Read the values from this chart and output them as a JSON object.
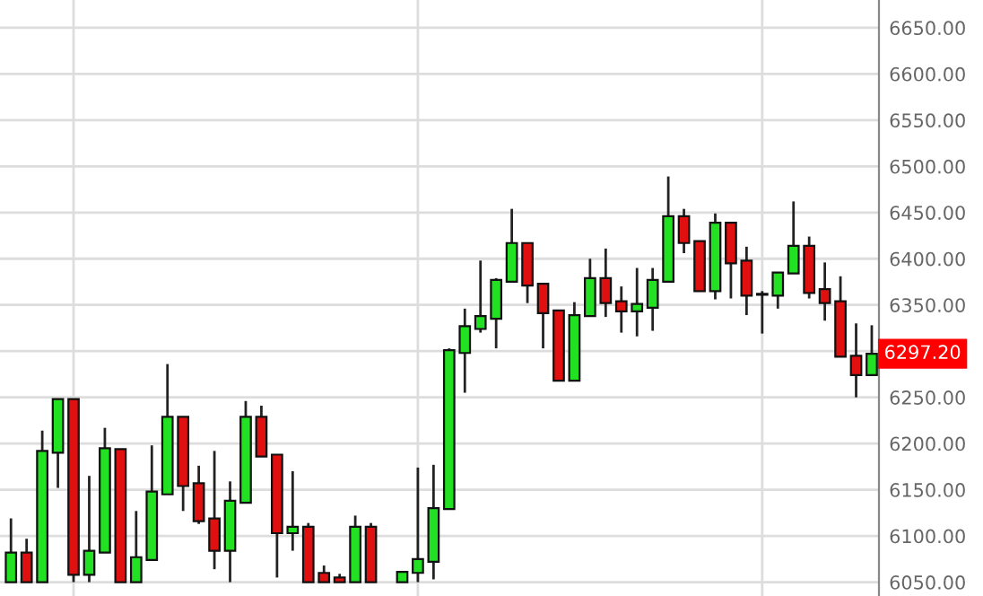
{
  "chart_data": {
    "type": "candlestick",
    "categories": [
      null,
      null,
      null,
      null,
      null,
      null,
      null,
      null,
      null,
      null,
      null,
      null,
      null,
      null,
      null,
      null,
      null,
      null,
      null,
      null,
      null,
      null,
      null,
      null,
      null,
      null,
      null,
      null,
      null,
      null,
      null,
      null,
      null,
      null,
      null,
      null,
      null,
      null,
      null,
      null,
      null,
      null,
      null,
      null,
      null,
      null,
      null,
      null,
      null,
      null,
      null,
      null,
      null,
      null,
      null,
      null
    ],
    "ohlc": [
      [
        6050,
        6119,
        6050,
        6082
      ],
      [
        6082,
        6097,
        6050,
        6050
      ],
      [
        6050,
        6214,
        6050,
        6192
      ],
      [
        6190,
        6248,
        6152,
        6248
      ],
      [
        6248,
        6248,
        6050,
        6058
      ],
      [
        6058,
        6165,
        6050,
        6084
      ],
      [
        6082,
        6217,
        6082,
        6195
      ],
      [
        6194,
        6194,
        6050,
        6050
      ],
      [
        6050,
        6127,
        6050,
        6077
      ],
      [
        6074,
        6198,
        6074,
        6148
      ],
      [
        6145,
        6286,
        6145,
        6229
      ],
      [
        6229,
        6229,
        6127,
        6154
      ],
      [
        6157,
        6176,
        6113,
        6116
      ],
      [
        6119,
        6192,
        6064,
        6084
      ],
      [
        6084,
        6159,
        6050,
        6138
      ],
      [
        6136,
        6246,
        6136,
        6229
      ],
      [
        6229,
        6241,
        6186,
        6186
      ],
      [
        6188,
        6188,
        6055,
        6103
      ],
      [
        6103,
        6170,
        6084,
        6110
      ],
      [
        6110,
        6114,
        6050,
        6050
      ],
      [
        6060,
        6068,
        6050,
        6050
      ],
      [
        6055,
        6059,
        6050,
        6050
      ],
      [
        6050,
        6122,
        6050,
        6110
      ],
      [
        6110,
        6114,
        6050,
        6050
      ],
      null,
      [
        6050,
        6061,
        6050,
        6061
      ],
      [
        6060,
        6174,
        6050,
        6075
      ],
      [
        6072,
        6177,
        6053,
        6130
      ],
      [
        6129,
        6303,
        6129,
        6301
      ],
      [
        6298,
        6346,
        6255,
        6327
      ],
      [
        6324,
        6398,
        6320,
        6338
      ],
      [
        6335,
        6379,
        6303,
        6377
      ],
      [
        6375,
        6454,
        6375,
        6417
      ],
      [
        6417,
        6417,
        6352,
        6371
      ],
      [
        6373,
        6373,
        6303,
        6341
      ],
      [
        6344,
        6344,
        6268,
        6268
      ],
      [
        6268,
        6353,
        6268,
        6339
      ],
      [
        6338,
        6400,
        6338,
        6379
      ],
      [
        6379,
        6411,
        6337,
        6352
      ],
      [
        6354,
        6370,
        6320,
        6343
      ],
      [
        6343,
        6390,
        6316,
        6351
      ],
      [
        6347,
        6390,
        6322,
        6377
      ],
      [
        6375,
        6489,
        6375,
        6446
      ],
      [
        6446,
        6454,
        6406,
        6417
      ],
      [
        6419,
        6419,
        6365,
        6365
      ],
      [
        6365,
        6449,
        6356,
        6439
      ],
      [
        6439,
        6439,
        6357,
        6395
      ],
      [
        6398,
        6413,
        6339,
        6360
      ],
      [
        6362,
        6365,
        6319,
        6361
      ],
      [
        6360,
        6385,
        6346,
        6385
      ],
      [
        6384,
        6462,
        6384,
        6414
      ],
      [
        6414,
        6424,
        6357,
        6363
      ],
      [
        6367,
        6396,
        6333,
        6352
      ],
      [
        6354,
        6381,
        6294,
        6294
      ],
      [
        6295,
        6330,
        6250,
        6274
      ],
      [
        6274,
        6328,
        6274,
        6297.2
      ]
    ],
    "ylim": [
      6035,
      6680
    ],
    "yticks": [
      {
        "value": 6050,
        "label": "6050.00"
      },
      {
        "value": 6100,
        "label": "6100.00"
      },
      {
        "value": 6150,
        "label": "6150.00"
      },
      {
        "value": 6200,
        "label": "6200.00"
      },
      {
        "value": 6250,
        "label": "6250.00"
      },
      {
        "value": 6300,
        "label": null
      },
      {
        "value": 6350,
        "label": "6350.00"
      },
      {
        "value": 6400,
        "label": "6400.00"
      },
      {
        "value": 6450,
        "label": "6450.00"
      },
      {
        "value": 6500,
        "label": "6500.00"
      },
      {
        "value": 6550,
        "label": "6550.00"
      },
      {
        "value": 6600,
        "label": "6600.00"
      },
      {
        "value": 6650,
        "label": "6650.00"
      }
    ],
    "grid": true,
    "annotations": [
      "6297.20"
    ]
  }
}
